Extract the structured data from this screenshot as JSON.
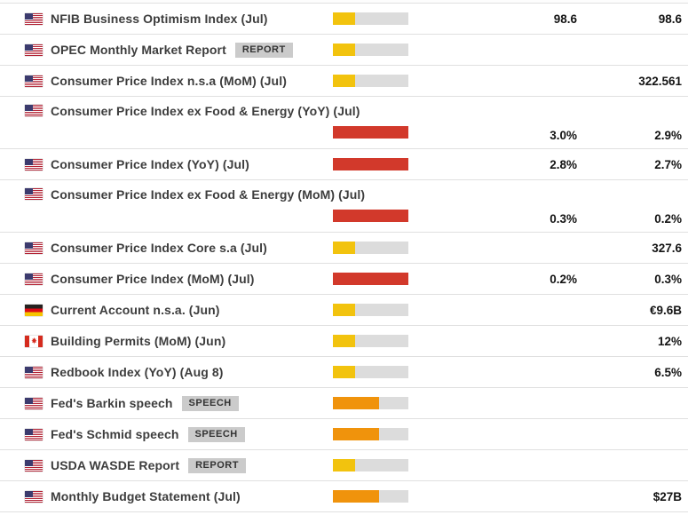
{
  "colors": {
    "low": "#f2c30e",
    "medium": "#f0930c",
    "high": "#d2392b",
    "track": "#dcdcdc"
  },
  "rows": [
    {
      "flag": "us",
      "title": "NFIB Business Optimism Index (Jul)",
      "badge": "",
      "importance": "low",
      "fill_pct": 29,
      "value1": "98.6",
      "value2": "98.6",
      "two_line": false,
      "partial": false
    },
    {
      "flag": "us",
      "title": "OPEC Monthly Market Report",
      "badge": "REPORT",
      "importance": "low",
      "fill_pct": 29,
      "value1": "",
      "value2": "",
      "two_line": false,
      "partial": false
    },
    {
      "flag": "us",
      "title": "Consumer Price Index n.s.a (MoM) (Jul)",
      "badge": "",
      "importance": "low",
      "fill_pct": 29,
      "value1": "",
      "value2": "322.561",
      "two_line": false,
      "partial": false
    },
    {
      "flag": "us",
      "title": "Consumer Price Index ex Food & Energy (YoY) (Jul)",
      "badge": "",
      "importance": "high",
      "fill_pct": 100,
      "value1": "3.0%",
      "value2": "2.9%",
      "two_line": true,
      "partial": false
    },
    {
      "flag": "us",
      "title": "Consumer Price Index (YoY) (Jul)",
      "badge": "",
      "importance": "high",
      "fill_pct": 100,
      "value1": "2.8%",
      "value2": "2.7%",
      "two_line": false,
      "partial": false
    },
    {
      "flag": "us",
      "title": "Consumer Price Index ex Food & Energy (MoM) (Jul)",
      "badge": "",
      "importance": "high",
      "fill_pct": 100,
      "value1": "0.3%",
      "value2": "0.2%",
      "two_line": true,
      "partial": false
    },
    {
      "flag": "us",
      "title": "Consumer Price Index Core s.a (Jul)",
      "badge": "",
      "importance": "low",
      "fill_pct": 29,
      "value1": "",
      "value2": "327.6",
      "two_line": false,
      "partial": false
    },
    {
      "flag": "us",
      "title": "Consumer Price Index (MoM) (Jul)",
      "badge": "",
      "importance": "high",
      "fill_pct": 100,
      "value1": "0.2%",
      "value2": "0.3%",
      "two_line": false,
      "partial": false
    },
    {
      "flag": "de",
      "title": "Current Account n.s.a. (Jun)",
      "badge": "",
      "importance": "low",
      "fill_pct": 29,
      "value1": "",
      "value2": "€9.6B",
      "two_line": false,
      "partial": false
    },
    {
      "flag": "ca",
      "title": "Building Permits (MoM) (Jun)",
      "badge": "",
      "importance": "low",
      "fill_pct": 29,
      "value1": "",
      "value2": "12%",
      "two_line": false,
      "partial": false
    },
    {
      "flag": "us",
      "title": "Redbook Index (YoY) (Aug 8)",
      "badge": "",
      "importance": "low",
      "fill_pct": 29,
      "value1": "",
      "value2": "6.5%",
      "two_line": false,
      "partial": false
    },
    {
      "flag": "us",
      "title": "Fed's Barkin speech",
      "badge": "SPEECH",
      "importance": "medium",
      "fill_pct": 61,
      "value1": "",
      "value2": "",
      "two_line": false,
      "partial": false
    },
    {
      "flag": "us",
      "title": "Fed's Schmid speech",
      "badge": "SPEECH",
      "importance": "medium",
      "fill_pct": 61,
      "value1": "",
      "value2": "",
      "two_line": false,
      "partial": false
    },
    {
      "flag": "us",
      "title": "USDA WASDE Report",
      "badge": "REPORT",
      "importance": "low",
      "fill_pct": 29,
      "value1": "",
      "value2": "",
      "two_line": false,
      "partial": false
    },
    {
      "flag": "us",
      "title": "Monthly Budget Statement (Jul)",
      "badge": "",
      "importance": "medium",
      "fill_pct": 61,
      "value1": "",
      "value2": "$27B",
      "two_line": false,
      "partial": false
    },
    {
      "flag": "us",
      "title": "",
      "badge": "",
      "importance": "",
      "fill_pct": 0,
      "value1": "",
      "value2": "",
      "two_line": false,
      "partial": true
    }
  ]
}
